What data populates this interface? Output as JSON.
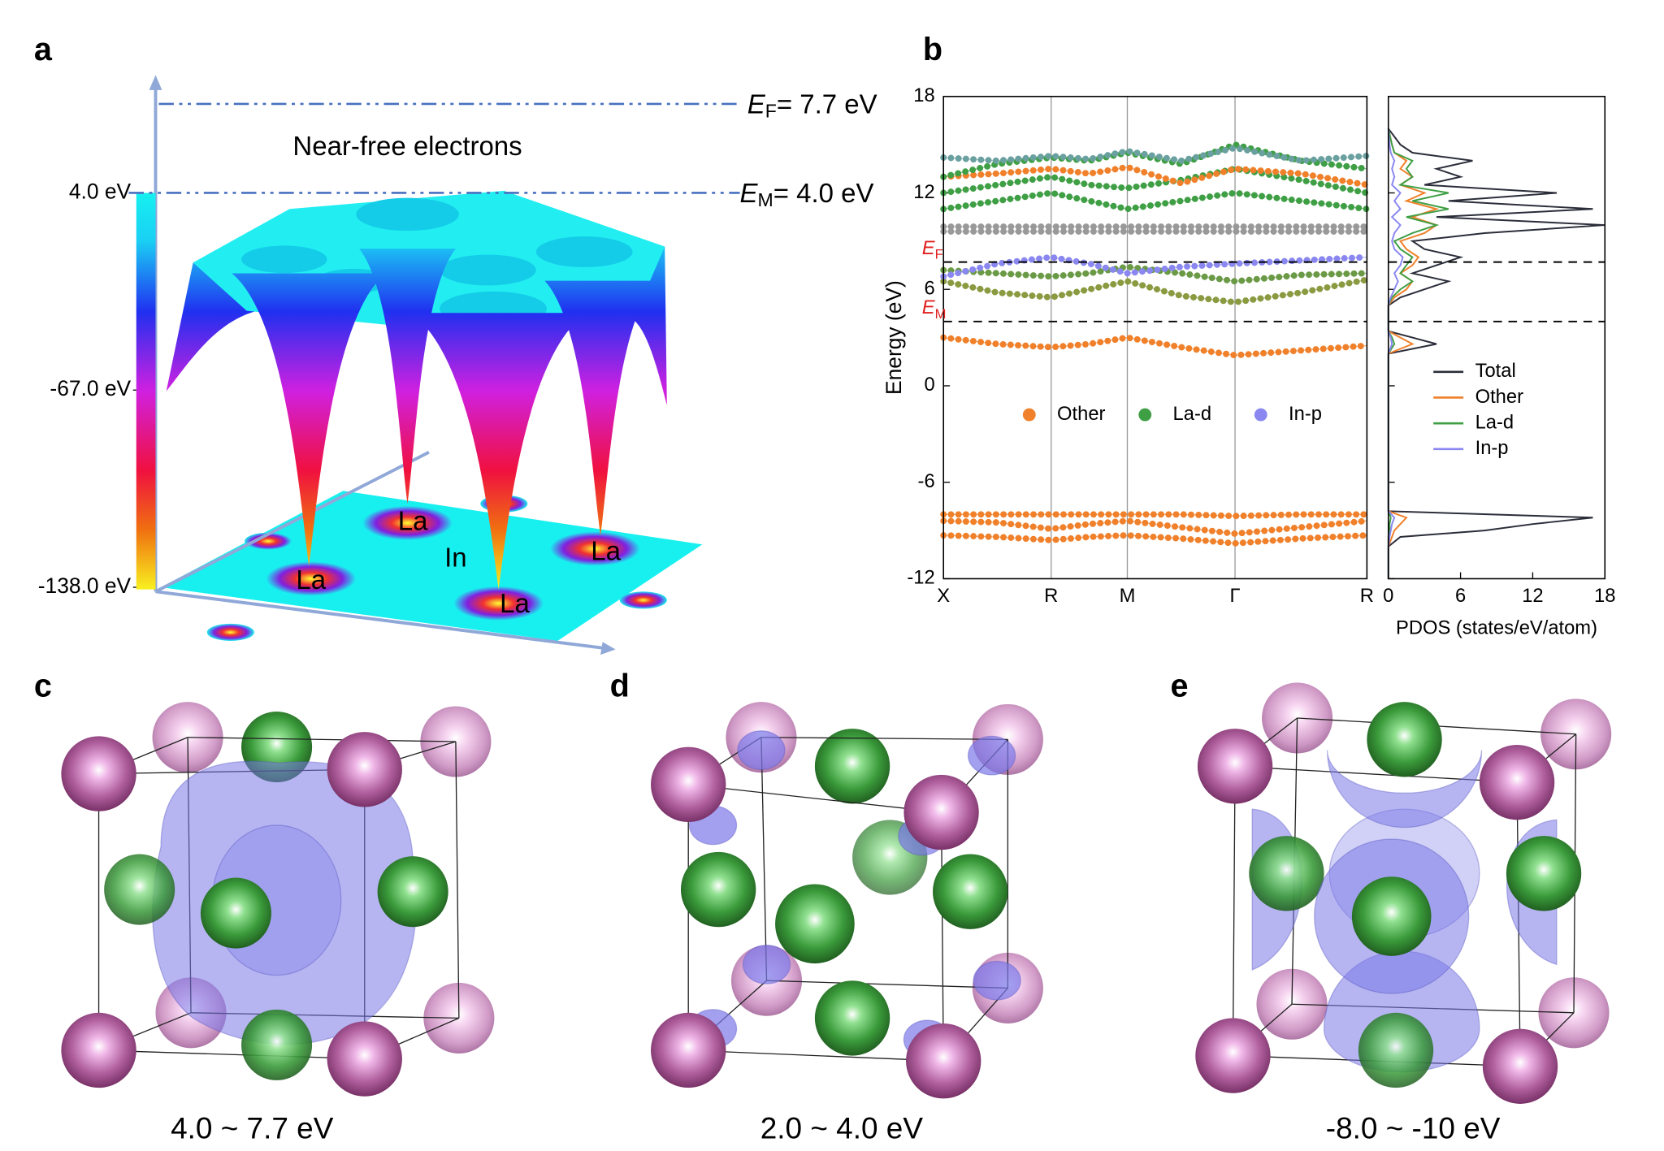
{
  "panel_labels": [
    "a",
    "b",
    "c",
    "d",
    "e"
  ],
  "panel_a": {
    "levels": [
      {
        "symbol": "E",
        "sub": "F",
        "text": "=  7.7 eV"
      },
      {
        "symbol": "E",
        "sub": "M",
        "text": "=  4.0 eV"
      }
    ],
    "region_label": "Near-free electrons",
    "colorbar_lim": [
      -138,
      4
    ],
    "colorbar_ticks": [
      {
        "value": 4,
        "label": "4.0 eV"
      },
      {
        "value": -67,
        "label": "-67.0 eV"
      },
      {
        "value": -138,
        "label": "-138.0 eV"
      }
    ],
    "atom_labels": [
      "La",
      "La",
      "In",
      "La",
      "La"
    ]
  },
  "chart_data": {
    "type": "bandstructure",
    "ylabel": "Energy (eV)",
    "ylim": [
      -12,
      18
    ],
    "yticks": [
      -12,
      -6,
      0,
      6,
      12,
      18
    ],
    "xlim": [
      0,
      2.78
    ],
    "xticks": [
      {
        "value": 0,
        "label": "X"
      },
      {
        "value": 0.707,
        "label": "R"
      },
      {
        "value": 1.207,
        "label": "M"
      },
      {
        "value": 1.914,
        "label": "Γ"
      },
      {
        "value": 2.78,
        "label": "R"
      }
    ],
    "hlines": [
      {
        "value": 7.7,
        "symbol": "E",
        "sub": "F"
      },
      {
        "value": 4.0,
        "symbol": "E",
        "sub": "M"
      }
    ],
    "projections": [
      {
        "name": "Other",
        "color": "#f0802a"
      },
      {
        "name": "La-d",
        "color": "#3f9f45"
      },
      {
        "name": "In-p",
        "color": "#8a88f0"
      }
    ],
    "band_x": [
      0,
      0.354,
      0.707,
      0.957,
      1.207,
      1.561,
      1.914,
      2.347,
      2.78
    ],
    "bands": [
      {
        "color": "#f0802a",
        "values": [
          -8,
          -8,
          -8,
          -8,
          -8,
          -8,
          -8.1,
          -8,
          -8
        ]
      },
      {
        "color": "#f0802a",
        "values": [
          -8.4,
          -8.5,
          -8.9,
          -8.6,
          -8.4,
          -8.8,
          -9.2,
          -8.8,
          -8.4
        ]
      },
      {
        "color": "#f0802a",
        "values": [
          -9.3,
          -9.4,
          -9.6,
          -9.4,
          -9.3,
          -9.5,
          -9.8,
          -9.5,
          -9.3
        ]
      },
      {
        "color": "#f0802a",
        "values": [
          3,
          2.6,
          2.4,
          2.6,
          3,
          2.4,
          1.9,
          2.2,
          2.5
        ]
      },
      {
        "color": "#8a9a40",
        "values": [
          6.5,
          5.8,
          5.5,
          6,
          6.5,
          5.6,
          5.2,
          5.8,
          6.6
        ]
      },
      {
        "color": "#6a9a45",
        "values": [
          7.2,
          7,
          6.8,
          7,
          7.4,
          7,
          6.5,
          6.9,
          7
        ]
      },
      {
        "color": "#8a88f0",
        "values": [
          6.8,
          7.6,
          8,
          7.6,
          7,
          7.4,
          7.6,
          7.8,
          8
        ]
      },
      {
        "color": "#999999",
        "values": [
          9.6,
          9.6,
          9.6,
          9.6,
          9.6,
          9.6,
          9.6,
          9.6,
          9.6
        ]
      },
      {
        "color": "#999999",
        "values": [
          9.9,
          9.9,
          9.9,
          9.9,
          9.9,
          9.9,
          9.9,
          9.9,
          9.9
        ]
      },
      {
        "color": "#3f9f45",
        "values": [
          11,
          11.5,
          12,
          11.5,
          11,
          11.5,
          12,
          11.5,
          11
        ]
      },
      {
        "color": "#3f9f45",
        "values": [
          12,
          12.5,
          13,
          12.5,
          12.3,
          12.8,
          13.5,
          12.8,
          12
        ]
      },
      {
        "color": "#f0802a",
        "values": [
          13,
          13.2,
          13.5,
          13.2,
          13.6,
          12.6,
          13.5,
          13.2,
          12.5
        ]
      },
      {
        "color": "#3f9f45",
        "values": [
          13,
          13.8,
          14.2,
          14,
          14.5,
          13.8,
          15,
          14,
          13.5
        ]
      },
      {
        "color": "#6aa0a0",
        "values": [
          14.2,
          14,
          14.3,
          14.1,
          14.6,
          14,
          14.8,
          14,
          14.3
        ]
      }
    ],
    "pdos_xlabel": "PDOS (states/eV/atom)",
    "pdos_xlim": [
      0,
      18
    ],
    "pdos_xticks": [
      0,
      6,
      12,
      18
    ],
    "pdos_energy": [
      -12,
      -10,
      -9.4,
      -9,
      -8.6,
      -8.2,
      -7.8,
      -7,
      2,
      2.6,
      3,
      3.4,
      4,
      5,
      5.5,
      6,
      6.5,
      7,
      7.5,
      8,
      8.5,
      9,
      9.5,
      10,
      10.5,
      11,
      11.5,
      12,
      12.5,
      13,
      13.5,
      14,
      14.5,
      15,
      16
    ],
    "pdos": [
      {
        "name": "Total",
        "color": "#2b2d3a",
        "values": [
          0,
          0,
          1,
          8,
          12,
          17,
          0,
          0,
          0,
          4,
          2,
          0,
          0,
          0,
          1,
          3,
          5,
          2,
          4,
          6,
          3,
          2,
          8,
          18,
          4,
          17,
          5,
          14,
          3,
          6,
          4,
          7,
          2,
          1,
          0
        ]
      },
      {
        "name": "Other",
        "color": "#f0802a",
        "values": [
          0,
          0,
          0.3,
          0.5,
          1,
          1.5,
          0,
          0,
          0,
          2,
          1,
          0,
          0,
          0,
          0.5,
          1.5,
          2,
          1,
          2,
          2.5,
          1.5,
          1,
          3,
          4,
          2,
          4,
          1.5,
          3,
          1,
          2,
          1,
          1.5,
          0.5,
          0.3,
          0
        ]
      },
      {
        "name": "La-d",
        "color": "#3f9f45",
        "values": [
          0,
          0,
          0,
          0.1,
          0.1,
          0.2,
          0,
          0,
          0,
          0.5,
          0.3,
          0,
          0,
          0,
          0.3,
          1,
          2,
          1,
          1.5,
          2,
          1,
          0.5,
          2,
          4,
          1.5,
          5,
          2,
          5,
          1,
          2,
          1.5,
          2,
          0.5,
          0.3,
          0
        ]
      },
      {
        "name": "In-p",
        "color": "#8a88f0",
        "values": [
          0,
          0,
          0.1,
          0.2,
          0.3,
          0.5,
          0,
          0,
          0,
          0.3,
          0.2,
          0,
          0,
          0,
          0.2,
          0.5,
          0.8,
          0.5,
          1,
          1.2,
          0.5,
          0.3,
          0.5,
          1,
          0.3,
          1,
          0.5,
          1,
          0.3,
          0.5,
          0.3,
          0.5,
          0.2,
          0.1,
          0
        ]
      }
    ]
  },
  "structures": [
    {
      "caption": "4.0 ~ 7.7 eV"
    },
    {
      "caption": "2.0 ~ 4.0 eV"
    },
    {
      "caption": "-8.0 ~ -10 eV"
    }
  ]
}
